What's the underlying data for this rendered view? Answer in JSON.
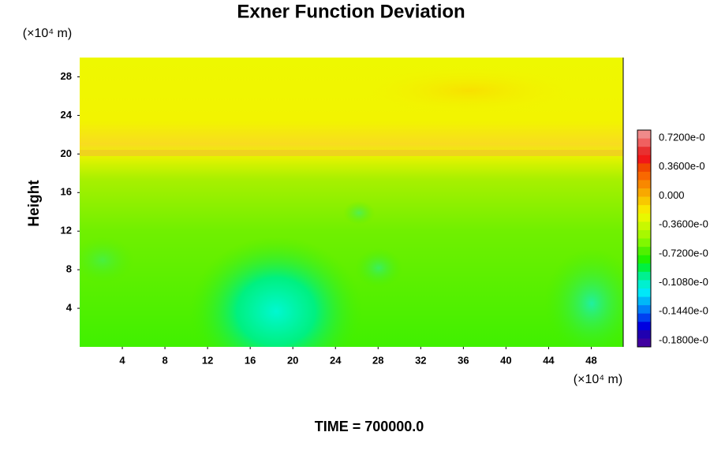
{
  "chart_data": {
    "type": "contour",
    "title": "Exner Function Deviation",
    "y_label": "Height",
    "x_unit": "(×10⁴ m)",
    "y_unit": "(×10⁴ m)",
    "time_label": "TIME = 700000.0",
    "xlim": [
      0,
      51
    ],
    "xticks": [
      4,
      8,
      12,
      16,
      20,
      24,
      28,
      32,
      36,
      40,
      44,
      48
    ],
    "ylim": [
      0,
      30
    ],
    "yticks": [
      4,
      8,
      12,
      16,
      20,
      24,
      28
    ],
    "colorbar_labels": [
      "0.7200e-0",
      "0.3600e-0",
      "0.000",
      "-0.3600e-0",
      "-0.7200e-0",
      "-0.1080e-0",
      "-0.1440e-0",
      "-0.1800e-0"
    ],
    "colorbar_colors": [
      "#f08a8a",
      "#f06060",
      "#e83030",
      "#f01818",
      "#f04800",
      "#f86800",
      "#f88800",
      "#f8a800",
      "#f8c800",
      "#f8e800",
      "#e8f800",
      "#c8f800",
      "#a8f800",
      "#80f800",
      "#50f000",
      "#20f000",
      "#00f040",
      "#00f090",
      "#00f0d0",
      "#00e8f8",
      "#00b8f8",
      "#0080f8",
      "#0040f0",
      "#0000e0",
      "#2000b0",
      "#4000a0"
    ]
  }
}
